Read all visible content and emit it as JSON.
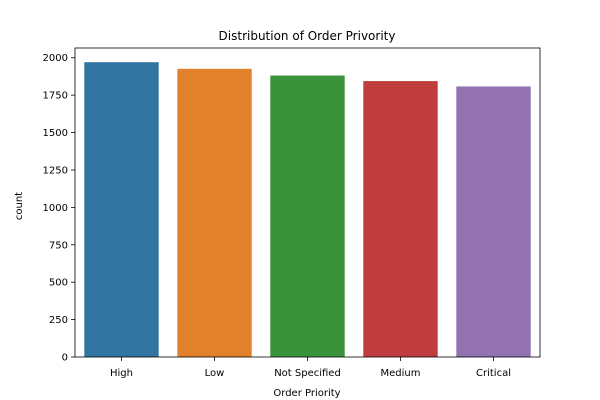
{
  "chart_data": {
    "type": "bar",
    "title": "Distribution of Order Privority",
    "xlabel": "Order Priority",
    "ylabel": "count",
    "categories": [
      "High",
      "Low",
      "Not Specified",
      "Medium",
      "Critical"
    ],
    "values": [
      1970,
      1926,
      1881,
      1844,
      1808
    ],
    "colors": [
      "#3274a1",
      "#e1812c",
      "#3a923a",
      "#c03d3e",
      "#9372b2"
    ],
    "ylim": [
      0,
      2065
    ],
    "yticks": [
      0,
      250,
      500,
      750,
      1000,
      1250,
      1500,
      1750,
      2000
    ],
    "grid": false,
    "legend": "none"
  }
}
